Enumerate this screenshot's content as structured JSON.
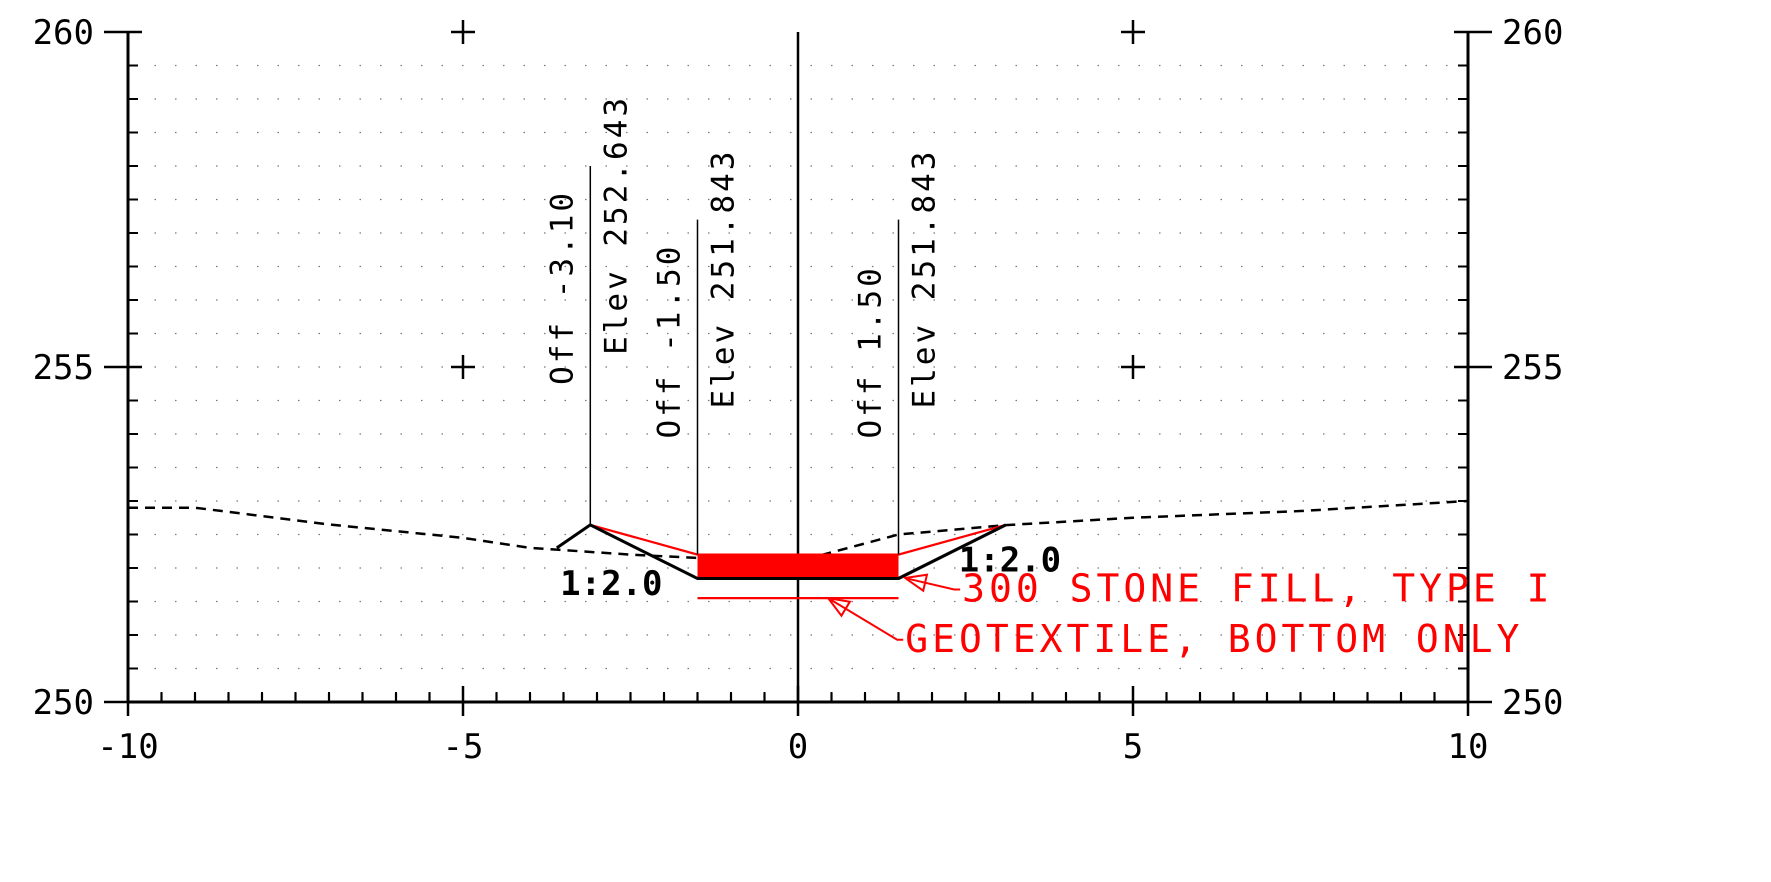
{
  "axes": {
    "x_ticks": [
      "-10",
      "-5",
      "0",
      "5",
      "10"
    ],
    "y_ticks": [
      "260",
      "255",
      "250"
    ],
    "x_range": [
      -10,
      10
    ],
    "y_range": [
      250,
      260
    ],
    "minor_step": 0.5,
    "dot_grid": true
  },
  "colors": {
    "axis": "#000000",
    "design": "#000000",
    "existing_ground": "#000000",
    "stone_fill": "#ff0000",
    "callout": "#ff0000"
  },
  "existing_ground": [
    [
      -10,
      252.9
    ],
    [
      -9,
      252.9
    ],
    [
      -7,
      252.65
    ],
    [
      -5,
      252.45
    ],
    [
      -4,
      252.3
    ],
    [
      -2.5,
      252.2
    ],
    [
      -1.5,
      252.15
    ],
    [
      0,
      252.1
    ],
    [
      1.5,
      252.5
    ],
    [
      3.1,
      252.64
    ],
    [
      5,
      252.75
    ],
    [
      7.5,
      252.85
    ],
    [
      10,
      253.0
    ]
  ],
  "design_section": [
    [
      -3.6,
      252.3
    ],
    [
      -3.1,
      252.643
    ],
    [
      -1.5,
      251.843
    ],
    [
      1.5,
      251.843
    ],
    [
      3.1,
      252.643
    ]
  ],
  "stone_fill": {
    "x": [
      -1.5,
      1.5
    ],
    "top": 252.2,
    "bottom": 251.843,
    "side_slopes_top": [
      [
        -3.1,
        252.643
      ],
      [
        -1.5,
        252.2
      ],
      [
        1.5,
        252.2
      ],
      [
        3.1,
        252.643
      ]
    ]
  },
  "geotextile": {
    "x": [
      -1.5,
      1.5
    ],
    "y": 251.55
  },
  "points": [
    {
      "x": -3.1,
      "y": 252.643,
      "offset_label": "Off -3.10",
      "elev_label": "Elev 252.643",
      "leader_top": 258.0
    },
    {
      "x": -1.5,
      "y": 251.843,
      "offset_label": "Off -1.50",
      "elev_label": "Elev 251.843",
      "leader_top": 257.2
    },
    {
      "x": 1.5,
      "y": 251.843,
      "offset_label": "Off 1.50",
      "elev_label": "Elev 251.843",
      "leader_top": 257.2
    }
  ],
  "slope_labels": [
    {
      "text": "1:2.0",
      "x": -3.55,
      "y": 251.6
    },
    {
      "text": "1:2.0",
      "x": 2.4,
      "y": 251.95
    }
  ],
  "callouts": [
    {
      "text": "300 STONE FILL, TYPE I",
      "target": [
        1.6,
        251.85
      ],
      "text_at": [
        2.45,
        251.5
      ]
    },
    {
      "text": "GEOTEXTILE, BOTTOM ONLY",
      "target": [
        0.45,
        251.55
      ],
      "text_at": [
        1.6,
        250.75
      ]
    }
  ]
}
